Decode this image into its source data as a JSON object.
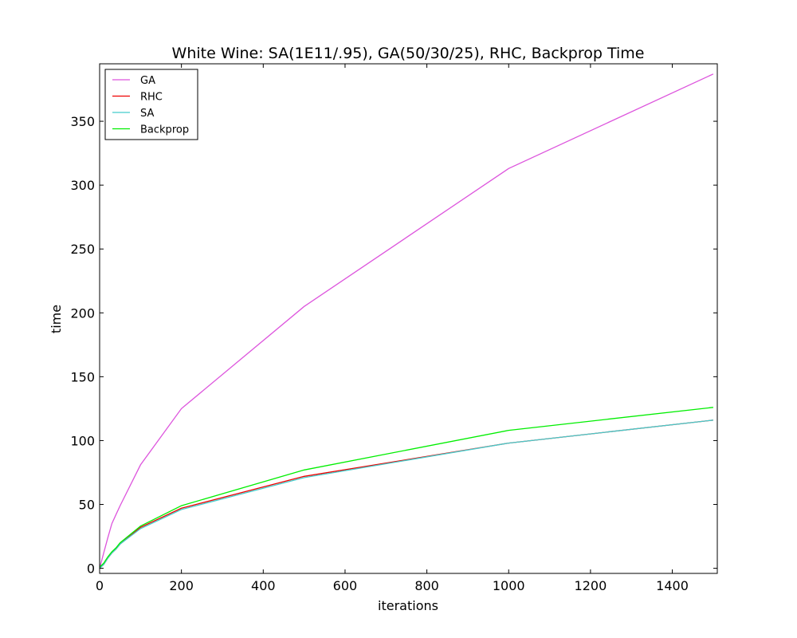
{
  "chart_data": {
    "type": "line",
    "title": "White Wine: SA(1E11/.95), GA(50/30/25), RHC, Backprop Time",
    "xlabel": "iterations",
    "ylabel": "time",
    "xlim": [
      0,
      1510
    ],
    "ylim": [
      -4,
      395
    ],
    "xticks": [
      0,
      200,
      400,
      600,
      800,
      1000,
      1200,
      1400
    ],
    "yticks": [
      0,
      50,
      100,
      150,
      200,
      250,
      300,
      350
    ],
    "grid": false,
    "legend_position": "top-left",
    "series": [
      {
        "name": "GA",
        "color": "#dd55dd",
        "x": [
          0,
          10,
          20,
          30,
          40,
          50,
          100,
          200,
          500,
          1000,
          1500
        ],
        "y": [
          0,
          12,
          24,
          35,
          42,
          49,
          81,
          125,
          205,
          313,
          387
        ]
      },
      {
        "name": "RHC",
        "color": "#ee0000",
        "x": [
          0,
          10,
          20,
          30,
          40,
          50,
          100,
          200,
          500,
          1000,
          1500
        ],
        "y": [
          0,
          3,
          8,
          12,
          15,
          19,
          32,
          47,
          72,
          98,
          116
        ]
      },
      {
        "name": "SA",
        "color": "#44cccc",
        "x": [
          0,
          10,
          20,
          30,
          40,
          50,
          100,
          200,
          500,
          1000,
          1500
        ],
        "y": [
          0,
          3,
          8,
          12,
          15,
          19,
          31,
          46,
          71,
          98,
          116
        ]
      },
      {
        "name": "Backprop",
        "color": "#00ee00",
        "x": [
          0,
          10,
          20,
          30,
          40,
          50,
          100,
          200,
          500,
          1000,
          1500
        ],
        "y": [
          1,
          4,
          9,
          13,
          16,
          20,
          33,
          49,
          77,
          108,
          126
        ]
      }
    ]
  }
}
